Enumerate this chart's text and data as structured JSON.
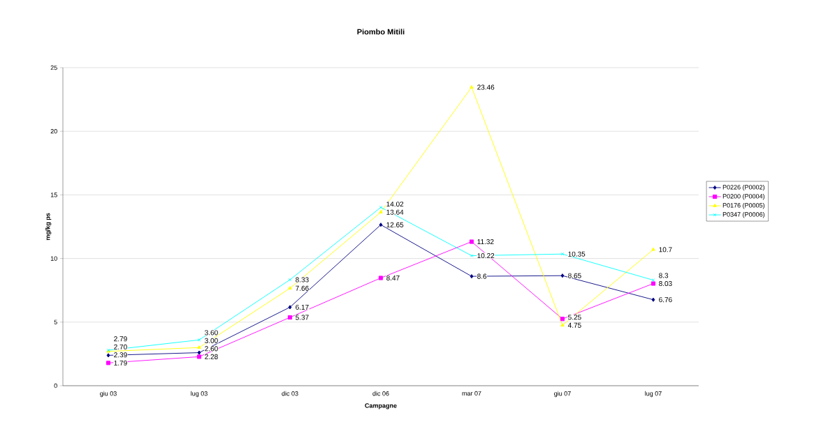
{
  "chart_data": {
    "type": "line",
    "title": "Piombo Mitili",
    "xlabel": "Campagne",
    "ylabel": "mg/kg ps",
    "categories": [
      "giu 03",
      "lug 03",
      "dic 03",
      "dic 06",
      "mar 07",
      "giu 07",
      "lug 07"
    ],
    "series": [
      {
        "name": "P0226 (P0002)",
        "color": "#000080",
        "marker": "diamond",
        "values": [
          2.39,
          2.6,
          6.17,
          12.65,
          8.6,
          8.65,
          6.76
        ],
        "value_labels": [
          "2.39",
          "2.60",
          "6.17",
          "12.65",
          "8.6",
          "8.65",
          "6.76"
        ]
      },
      {
        "name": "P0200 (P0004)",
        "color": "#ff00ff",
        "marker": "square",
        "values": [
          1.79,
          2.28,
          5.37,
          8.47,
          11.32,
          5.25,
          8.03
        ],
        "value_labels": [
          "1.79",
          "2.28",
          "5.37",
          "8.47",
          "11.32",
          "5.25",
          "8.03"
        ]
      },
      {
        "name": "P0176 (P0005)",
        "color": "#ffff00",
        "marker": "triangle",
        "values": [
          2.7,
          3.0,
          7.66,
          13.64,
          23.46,
          4.75,
          10.7
        ],
        "value_labels": [
          "2.70",
          "3.00",
          "7.66",
          "13.64",
          "23.46",
          "4.75",
          "10.7"
        ]
      },
      {
        "name": "P0347 (P0006)",
        "color": "#00ffff",
        "marker": "cross",
        "values": [
          2.79,
          3.6,
          8.33,
          14.02,
          10.22,
          10.35,
          8.3
        ],
        "value_labels": [
          "2.79",
          "3.60",
          "8.33",
          "14.02",
          "10.22",
          "10.35",
          "8.3"
        ]
      }
    ],
    "ylim": [
      0,
      25
    ],
    "yticks": [
      0,
      5,
      10,
      15,
      20,
      25
    ],
    "grid": "y",
    "legend": "right"
  }
}
